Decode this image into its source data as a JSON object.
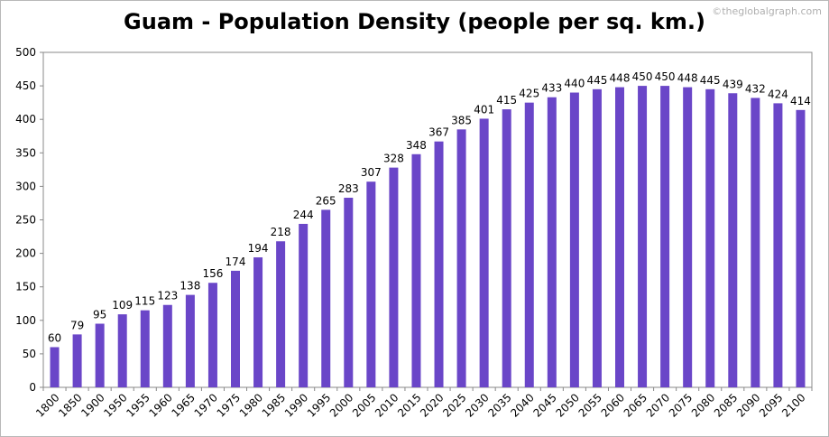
{
  "chart_data": {
    "type": "bar",
    "title": "Guam - Population Density (people per sq. km.)",
    "categories": [
      "1800",
      "1850",
      "1900",
      "1950",
      "1955",
      "1960",
      "1965",
      "1970",
      "1975",
      "1980",
      "1985",
      "1990",
      "1995",
      "2000",
      "2005",
      "2010",
      "2015",
      "2020",
      "2025",
      "2030",
      "2035",
      "2040",
      "2045",
      "2050",
      "2055",
      "2060",
      "2065",
      "2070",
      "2075",
      "2080",
      "2085",
      "2090",
      "2095",
      "2100"
    ],
    "values": [
      60,
      79,
      95,
      109,
      115,
      123,
      138,
      156,
      174,
      194,
      218,
      244,
      265,
      283,
      307,
      328,
      348,
      367,
      385,
      401,
      415,
      425,
      433,
      440,
      445,
      448,
      450,
      450,
      448,
      445,
      439,
      432,
      424,
      414
    ],
    "ylim": [
      0,
      500
    ],
    "yticks": [
      0,
      50,
      100,
      150,
      200,
      250,
      300,
      350,
      400,
      450,
      500
    ],
    "xlabel": "",
    "ylabel": "",
    "bar_color": "#6a46c8",
    "grid": false,
    "show_data_labels": true
  },
  "watermark": "©theglobalgraph.com"
}
